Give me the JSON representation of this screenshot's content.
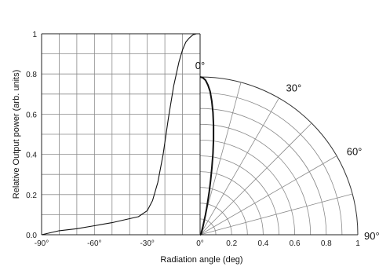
{
  "chart_data": {
    "type": "line",
    "ylabel": "Relative Output power (arb. units)",
    "xlabel": "Radiation angle (deg)",
    "xlim": [
      -90,
      0
    ],
    "ylim": [
      0,
      1
    ],
    "x_ticks": [
      -90,
      -60,
      -30,
      0
    ],
    "x_tick_labels": [
      "-90°",
      "-60°",
      "-30°",
      "0°"
    ],
    "y_ticks": [
      0,
      0.2,
      0.4,
      0.6,
      0.8,
      1
    ],
    "y_tick_labels": [
      "0.0",
      "0.2",
      "0.4",
      "0.6",
      "0.8",
      "1"
    ],
    "radial_ticks": [
      0.2,
      0.4,
      0.6,
      0.8,
      1
    ],
    "radial_tick_labels": [
      "0.2",
      "0.4",
      "0.6",
      "0.8",
      "1"
    ],
    "angle_labels": [
      "0°",
      "30°",
      "60°",
      "90°"
    ],
    "grid": true,
    "series": [
      {
        "kind": "cartesian",
        "x": [
          -90,
          -80,
          -70,
          -60,
          -50,
          -40,
          -35,
          -30,
          -27,
          -24,
          -21,
          -18,
          -15,
          -12,
          -10,
          -8,
          -6,
          -4,
          -2,
          0
        ],
        "y": [
          0.0,
          0.02,
          0.03,
          0.045,
          0.06,
          0.08,
          0.09,
          0.12,
          0.17,
          0.26,
          0.4,
          0.58,
          0.74,
          0.86,
          0.92,
          0.96,
          0.98,
          0.995,
          1.0,
          1.0
        ]
      },
      {
        "kind": "polar",
        "theta_deg": [
          0,
          1,
          2,
          3,
          4,
          5,
          6,
          7,
          8,
          9,
          10,
          11,
          12,
          13,
          14,
          15,
          16,
          18,
          20,
          25,
          30,
          40,
          50,
          60,
          70,
          80,
          90
        ],
        "r": [
          1.0,
          0.995,
          0.98,
          0.95,
          0.91,
          0.85,
          0.78,
          0.7,
          0.61,
          0.52,
          0.43,
          0.35,
          0.28,
          0.22,
          0.17,
          0.13,
          0.1,
          0.07,
          0.05,
          0.03,
          0.02,
          0.012,
          0.008,
          0.005,
          0.003,
          0.001,
          0.0
        ]
      }
    ]
  }
}
